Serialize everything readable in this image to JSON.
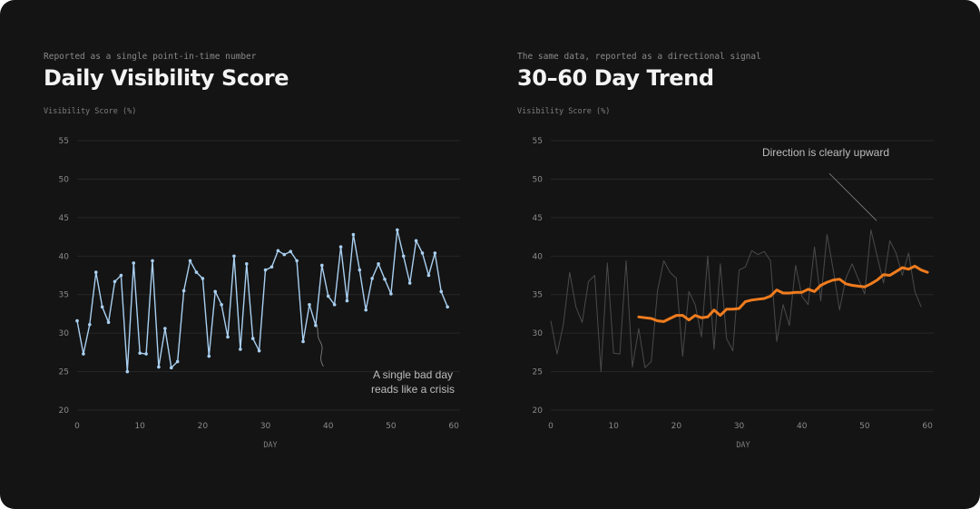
{
  "colors": {
    "background": "#141414",
    "grid": "#262626",
    "daily_series": "#a9cff0",
    "raw_series_muted": "#4a4a4a",
    "trend_series": "#f07c1e",
    "annotation_line": "#8a8a8a"
  },
  "chart_data": [
    {
      "type": "line",
      "subtitle": "Reported as a single point-in-time number",
      "title": "Daily Visibility Score",
      "ylabel": "Visibility Score (%)",
      "xlabel": "DAY",
      "xlim": [
        0,
        61
      ],
      "ylim": [
        20,
        55
      ],
      "xticks": [
        0,
        10,
        20,
        30,
        40,
        50,
        60
      ],
      "yticks": [
        20,
        25,
        30,
        35,
        40,
        45,
        50,
        55
      ],
      "grid": true,
      "annotation": {
        "lines": [
          "A single bad day",
          "reads like a crisis"
        ],
        "points_to": {
          "x": 38.8,
          "y": 25.7
        }
      },
      "series": [
        {
          "style": "line-with-markers",
          "values": [
            31.6,
            27.3,
            31.1,
            37.9,
            33.4,
            31.4,
            36.7,
            37.5,
            25.0,
            39.1,
            27.4,
            27.3,
            39.4,
            25.6,
            30.6,
            25.5,
            26.3,
            35.5,
            39.4,
            37.9,
            37.1,
            27.0,
            35.4,
            33.7,
            29.5,
            40.0,
            27.9,
            39.0,
            29.3,
            27.7,
            38.2,
            38.6,
            40.7,
            40.2,
            40.6,
            39.4,
            28.9,
            33.7,
            31.0,
            38.8,
            34.8,
            33.7,
            41.2,
            34.2,
            42.8,
            38.2,
            33.0,
            37.1,
            39.0,
            37.0,
            35.1,
            43.4,
            40.0,
            36.5,
            42.0,
            40.4,
            37.5,
            40.4,
            35.4,
            33.4
          ]
        }
      ]
    },
    {
      "type": "line",
      "subtitle": "The same data, reported as a directional signal",
      "title": "30–60 Day Trend",
      "ylabel": "Visibility Score (%)",
      "xlabel": "DAY",
      "xlim": [
        0,
        61
      ],
      "ylim": [
        20,
        55
      ],
      "xticks": [
        0,
        10,
        20,
        30,
        40,
        50,
        60
      ],
      "yticks": [
        20,
        25,
        30,
        35,
        40,
        45,
        50,
        55
      ],
      "grid": true,
      "annotation": {
        "lines": [
          "Direction is clearly upward"
        ],
        "points_to": {
          "x": 51.9,
          "y": 44.6
        }
      },
      "series": [
        {
          "style": "thin-muted",
          "values": [
            31.6,
            27.3,
            31.1,
            37.9,
            33.4,
            31.4,
            36.7,
            37.5,
            25.0,
            39.1,
            27.4,
            27.3,
            39.4,
            25.6,
            30.6,
            25.5,
            26.3,
            35.5,
            39.4,
            37.9,
            37.1,
            27.0,
            35.4,
            33.7,
            29.5,
            40.0,
            27.9,
            39.0,
            29.3,
            27.7,
            38.2,
            38.6,
            40.7,
            40.2,
            40.6,
            39.4,
            28.9,
            33.7,
            31.0,
            38.8,
            34.8,
            33.7,
            41.2,
            34.2,
            42.8,
            38.2,
            33.0,
            37.1,
            39.0,
            37.0,
            35.1,
            43.4,
            40.0,
            36.5,
            42.0,
            40.4,
            37.5,
            40.4,
            35.4,
            33.4
          ]
        },
        {
          "style": "thick-trend",
          "x_start": 14,
          "values": [
            32.1,
            32.0,
            31.9,
            31.6,
            31.5,
            31.9,
            32.3,
            32.3,
            31.7,
            32.3,
            32.0,
            32.1,
            33.0,
            32.3,
            33.1,
            33.1,
            33.2,
            34.1,
            34.3,
            34.4,
            34.5,
            34.8,
            35.6,
            35.2,
            35.2,
            35.3,
            35.3,
            35.7,
            35.4,
            36.2,
            36.6,
            36.9,
            37.0,
            36.4,
            36.2,
            36.1,
            36.0,
            36.4,
            36.9,
            37.6,
            37.5,
            38.0,
            38.5,
            38.3,
            38.7,
            38.2,
            37.9
          ]
        }
      ]
    }
  ]
}
